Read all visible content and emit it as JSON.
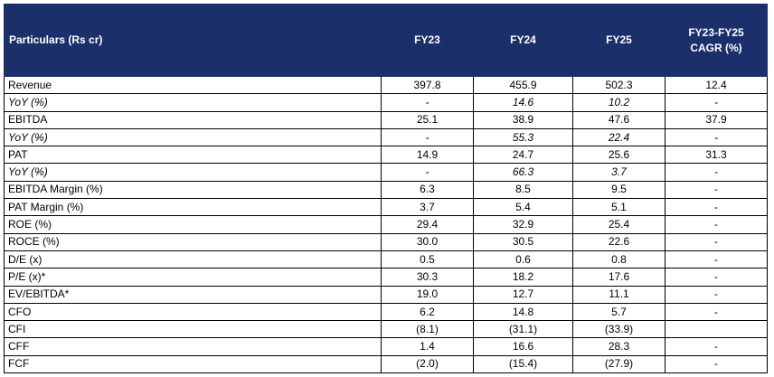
{
  "table": {
    "headers": [
      "Particulars (Rs cr)",
      "FY23",
      "FY24",
      "FY25",
      "FY23-FY25\nCAGR (%)"
    ],
    "rows": [
      {
        "label": "Revenue",
        "values": [
          "397.8",
          "455.9",
          "502.3",
          "12.4"
        ],
        "italic": false
      },
      {
        "label": "YoY (%)",
        "values": [
          "-",
          "14.6",
          "10.2",
          "-"
        ],
        "italic": true
      },
      {
        "label": "EBITDA",
        "values": [
          "25.1",
          "38.9",
          "47.6",
          "37.9"
        ],
        "italic": false
      },
      {
        "label": "YoY (%)",
        "values": [
          "-",
          "55.3",
          "22.4",
          "-"
        ],
        "italic": true
      },
      {
        "label": "PAT",
        "values": [
          "14.9",
          "24.7",
          "25.6",
          "31.3"
        ],
        "italic": false
      },
      {
        "label": "YoY (%)",
        "values": [
          "-",
          "66.3",
          "3.7",
          "-"
        ],
        "italic": true
      },
      {
        "label": "EBITDA Margin (%)",
        "values": [
          "6.3",
          "8.5",
          "9.5",
          "-"
        ],
        "italic": false
      },
      {
        "label": "PAT Margin (%)",
        "values": [
          "3.7",
          "5.4",
          "5.1",
          "-"
        ],
        "italic": false
      },
      {
        "label": "ROE (%)",
        "values": [
          "29.4",
          "32.9",
          "25.4",
          "-"
        ],
        "italic": false
      },
      {
        "label": "ROCE (%)",
        "values": [
          "30.0",
          "30.5",
          "22.6",
          "-"
        ],
        "italic": false
      },
      {
        "label": "D/E (x)",
        "values": [
          "0.5",
          "0.6",
          "0.8",
          "-"
        ],
        "italic": false
      },
      {
        "label": "P/E (x)*",
        "values": [
          "30.3",
          "18.2",
          "17.6",
          "-"
        ],
        "italic": false
      },
      {
        "label": "EV/EBITDA*",
        "values": [
          "19.0",
          "12.7",
          "11.1",
          "-"
        ],
        "italic": false
      },
      {
        "label": "CFO",
        "values": [
          "6.2",
          "14.8",
          "5.7",
          "-"
        ],
        "italic": false
      },
      {
        "label": "CFI",
        "values": [
          "(8.1)",
          "(31.1)",
          "(33.9)",
          ""
        ],
        "italic": false
      },
      {
        "label": "CFF",
        "values": [
          "1.4",
          "16.6",
          "28.3",
          "-"
        ],
        "italic": false
      },
      {
        "label": "FCF",
        "values": [
          "(2.0)",
          "(15.4)",
          "(27.9)",
          "-"
        ],
        "italic": false
      }
    ]
  },
  "colors": {
    "header_bg": "#1b2f6b",
    "header_text": "#ffffff",
    "border": "#000000"
  }
}
